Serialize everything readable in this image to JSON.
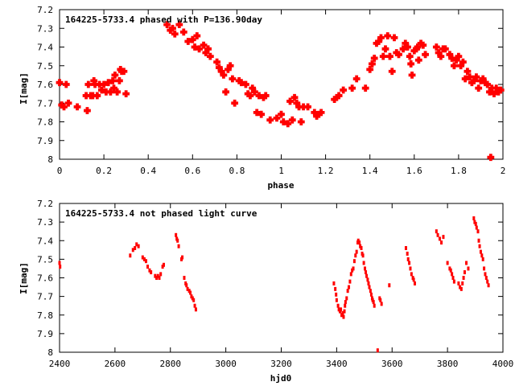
{
  "chart_data": [
    {
      "type": "scatter",
      "title": "164225-5733.4 phased with P=136.90day",
      "xlabel": "phase",
      "ylabel": "I[mag]",
      "xlim": [
        0,
        2
      ],
      "ylim": [
        7.2,
        8.0
      ],
      "y_inverted": true,
      "xticks": [
        "0",
        "0.2",
        "0.4",
        "0.6",
        "0.8",
        "1",
        "1.2",
        "1.4",
        "1.6",
        "1.8",
        "2"
      ],
      "yticks": [
        "7.2",
        "7.3",
        "7.4",
        "7.5",
        "7.6",
        "7.7",
        "7.8",
        "7.9",
        "8"
      ],
      "grid": false,
      "marker": "cross",
      "color": "#ff0000",
      "points": [
        [
          0.0,
          7.59
        ],
        [
          0.01,
          7.71
        ],
        [
          0.02,
          7.72
        ],
        [
          0.03,
          7.6
        ],
        [
          0.04,
          7.7
        ],
        [
          0.08,
          7.72
        ],
        [
          0.12,
          7.66
        ],
        [
          0.125,
          7.74
        ],
        [
          0.13,
          7.6
        ],
        [
          0.14,
          7.66
        ],
        [
          0.15,
          7.66
        ],
        [
          0.155,
          7.58
        ],
        [
          0.16,
          7.6
        ],
        [
          0.17,
          7.66
        ],
        [
          0.18,
          7.6
        ],
        [
          0.19,
          7.63
        ],
        [
          0.2,
          7.6
        ],
        [
          0.21,
          7.64
        ],
        [
          0.22,
          7.59
        ],
        [
          0.23,
          7.64
        ],
        [
          0.24,
          7.58
        ],
        [
          0.245,
          7.62
        ],
        [
          0.25,
          7.55
        ],
        [
          0.26,
          7.64
        ],
        [
          0.27,
          7.58
        ],
        [
          0.275,
          7.52
        ],
        [
          0.28,
          7.53
        ],
        [
          0.29,
          7.53
        ],
        [
          0.3,
          7.65
        ],
        [
          0.485,
          7.28
        ],
        [
          0.5,
          7.31
        ],
        [
          0.51,
          7.3
        ],
        [
          0.52,
          7.33
        ],
        [
          0.54,
          7.28
        ],
        [
          0.56,
          7.32
        ],
        [
          0.58,
          7.37
        ],
        [
          0.6,
          7.36
        ],
        [
          0.61,
          7.4
        ],
        [
          0.62,
          7.34
        ],
        [
          0.63,
          7.41
        ],
        [
          0.65,
          7.39
        ],
        [
          0.66,
          7.43
        ],
        [
          0.67,
          7.41
        ],
        [
          0.68,
          7.45
        ],
        [
          0.71,
          7.48
        ],
        [
          0.72,
          7.51
        ],
        [
          0.73,
          7.53
        ],
        [
          0.74,
          7.55
        ],
        [
          0.75,
          7.64
        ],
        [
          0.76,
          7.52
        ],
        [
          0.77,
          7.5
        ],
        [
          0.78,
          7.57
        ],
        [
          0.79,
          7.7
        ],
        [
          0.81,
          7.58
        ],
        [
          0.82,
          7.59
        ],
        [
          0.84,
          7.6
        ],
        [
          0.85,
          7.65
        ],
        [
          0.86,
          7.66
        ],
        [
          0.87,
          7.62
        ],
        [
          0.88,
          7.64
        ],
        [
          0.89,
          7.75
        ],
        [
          0.9,
          7.66
        ],
        [
          0.91,
          7.76
        ],
        [
          0.92,
          7.67
        ],
        [
          0.93,
          7.66
        ],
        [
          0.95,
          7.79
        ],
        [
          0.98,
          7.78
        ],
        [
          1.0,
          7.76
        ],
        [
          1.01,
          7.8
        ],
        [
          1.03,
          7.81
        ],
        [
          1.04,
          7.69
        ],
        [
          1.05,
          7.79
        ],
        [
          1.06,
          7.67
        ],
        [
          1.07,
          7.7
        ],
        [
          1.08,
          7.72
        ],
        [
          1.09,
          7.8
        ],
        [
          1.1,
          7.72
        ],
        [
          1.12,
          7.72
        ],
        [
          1.15,
          7.75
        ],
        [
          1.16,
          7.77
        ],
        [
          1.17,
          7.76
        ],
        [
          1.18,
          7.75
        ],
        [
          1.24,
          7.68
        ],
        [
          1.25,
          7.67
        ],
        [
          1.26,
          7.66
        ],
        [
          1.28,
          7.63
        ],
        [
          1.32,
          7.62
        ],
        [
          1.34,
          7.57
        ],
        [
          1.38,
          7.62
        ],
        [
          1.4,
          7.52
        ],
        [
          1.41,
          7.49
        ],
        [
          1.42,
          7.46
        ],
        [
          1.43,
          7.38
        ],
        [
          1.44,
          7.37
        ],
        [
          1.45,
          7.35
        ],
        [
          1.46,
          7.45
        ],
        [
          1.47,
          7.41
        ],
        [
          1.48,
          7.34
        ],
        [
          1.49,
          7.45
        ],
        [
          1.5,
          7.53
        ],
        [
          1.51,
          7.35
        ],
        [
          1.52,
          7.43
        ],
        [
          1.53,
          7.44
        ],
        [
          1.55,
          7.41
        ],
        [
          1.56,
          7.38
        ],
        [
          1.57,
          7.4
        ],
        [
          1.58,
          7.45
        ],
        [
          1.585,
          7.49
        ],
        [
          1.59,
          7.55
        ],
        [
          1.6,
          7.42
        ],
        [
          1.61,
          7.41
        ],
        [
          1.615,
          7.4
        ],
        [
          1.62,
          7.47
        ],
        [
          1.63,
          7.38
        ],
        [
          1.64,
          7.39
        ],
        [
          1.65,
          7.44
        ],
        [
          1.7,
          7.4
        ],
        [
          1.71,
          7.43
        ],
        [
          1.72,
          7.45
        ],
        [
          1.73,
          7.41
        ],
        [
          1.74,
          7.41
        ],
        [
          1.76,
          7.44
        ],
        [
          1.77,
          7.46
        ],
        [
          1.78,
          7.5
        ],
        [
          1.79,
          7.47
        ],
        [
          1.8,
          7.45
        ],
        [
          1.81,
          7.5
        ],
        [
          1.82,
          7.48
        ],
        [
          1.83,
          7.57
        ],
        [
          1.84,
          7.53
        ],
        [
          1.85,
          7.56
        ],
        [
          1.86,
          7.59
        ],
        [
          1.87,
          7.58
        ],
        [
          1.88,
          7.56
        ],
        [
          1.89,
          7.62
        ],
        [
          1.9,
          7.58
        ],
        [
          1.91,
          7.57
        ],
        [
          1.92,
          7.59
        ],
        [
          1.93,
          7.6
        ],
        [
          1.94,
          7.64
        ],
        [
          1.945,
          7.99
        ],
        [
          1.95,
          7.62
        ],
        [
          1.96,
          7.65
        ],
        [
          1.97,
          7.62
        ],
        [
          1.98,
          7.64
        ],
        [
          1.99,
          7.63
        ]
      ]
    },
    {
      "type": "scatter",
      "title": "164225-5733.4 not phased light curve",
      "xlabel": "hjd0",
      "ylabel": "I[mag]",
      "xlim": [
        2400,
        4000
      ],
      "ylim": [
        7.2,
        8.0
      ],
      "y_inverted": true,
      "xticks": [
        "2400",
        "2600",
        "2800",
        "3000",
        "3200",
        "3400",
        "3600",
        "3800",
        "4000"
      ],
      "yticks": [
        "7.2",
        "7.3",
        "7.4",
        "7.5",
        "7.6",
        "7.7",
        "7.8",
        "7.9",
        "8"
      ],
      "grid": false,
      "marker": "dot",
      "color": "#ff0000",
      "points": [
        [
          2400,
          7.52
        ],
        [
          2402,
          7.54
        ],
        [
          2655,
          7.48
        ],
        [
          2665,
          7.45
        ],
        [
          2672,
          7.44
        ],
        [
          2678,
          7.42
        ],
        [
          2685,
          7.43
        ],
        [
          2700,
          7.49
        ],
        [
          2706,
          7.5
        ],
        [
          2712,
          7.51
        ],
        [
          2718,
          7.54
        ],
        [
          2725,
          7.56
        ],
        [
          2730,
          7.57
        ],
        [
          2745,
          7.59
        ],
        [
          2750,
          7.6
        ],
        [
          2755,
          7.59
        ],
        [
          2760,
          7.6
        ],
        [
          2765,
          7.58
        ],
        [
          2772,
          7.54
        ],
        [
          2776,
          7.53
        ],
        [
          2820,
          7.37
        ],
        [
          2823,
          7.39
        ],
        [
          2826,
          7.4
        ],
        [
          2830,
          7.43
        ],
        [
          2840,
          7.5
        ],
        [
          2843,
          7.49
        ],
        [
          2850,
          7.6
        ],
        [
          2855,
          7.63
        ],
        [
          2858,
          7.64
        ],
        [
          2862,
          7.66
        ],
        [
          2868,
          7.67
        ],
        [
          2872,
          7.68
        ],
        [
          2876,
          7.7
        ],
        [
          2880,
          7.71
        ],
        [
          2884,
          7.72
        ],
        [
          2888,
          7.75
        ],
        [
          2892,
          7.77
        ],
        [
          3390,
          7.63
        ],
        [
          3395,
          7.66
        ],
        [
          3398,
          7.69
        ],
        [
          3400,
          7.72
        ],
        [
          3405,
          7.75
        ],
        [
          3408,
          7.77
        ],
        [
          3412,
          7.78
        ],
        [
          3415,
          7.77
        ],
        [
          3418,
          7.8
        ],
        [
          3422,
          7.79
        ],
        [
          3425,
          7.81
        ],
        [
          3428,
          7.78
        ],
        [
          3430,
          7.75
        ],
        [
          3432,
          7.73
        ],
        [
          3436,
          7.71
        ],
        [
          3440,
          7.67
        ],
        [
          3444,
          7.65
        ],
        [
          3448,
          7.62
        ],
        [
          3452,
          7.58
        ],
        [
          3456,
          7.56
        ],
        [
          3460,
          7.55
        ],
        [
          3464,
          7.51
        ],
        [
          3468,
          7.48
        ],
        [
          3472,
          7.46
        ],
        [
          3476,
          7.41
        ],
        [
          3478,
          7.4
        ],
        [
          3482,
          7.41
        ],
        [
          3485,
          7.43
        ],
        [
          3489,
          7.44
        ],
        [
          3492,
          7.47
        ],
        [
          3495,
          7.48
        ],
        [
          3498,
          7.52
        ],
        [
          3502,
          7.55
        ],
        [
          3505,
          7.57
        ],
        [
          3508,
          7.59
        ],
        [
          3512,
          7.61
        ],
        [
          3515,
          7.63
        ],
        [
          3518,
          7.65
        ],
        [
          3522,
          7.67
        ],
        [
          3525,
          7.69
        ],
        [
          3528,
          7.71
        ],
        [
          3530,
          7.72
        ],
        [
          3533,
          7.73
        ],
        [
          3536,
          7.75
        ],
        [
          3548,
          7.99
        ],
        [
          3555,
          7.71
        ],
        [
          3558,
          7.72
        ],
        [
          3562,
          7.74
        ],
        [
          3590,
          7.64
        ],
        [
          3650,
          7.44
        ],
        [
          3655,
          7.47
        ],
        [
          3658,
          7.5
        ],
        [
          3662,
          7.52
        ],
        [
          3666,
          7.55
        ],
        [
          3670,
          7.58
        ],
        [
          3675,
          7.6
        ],
        [
          3678,
          7.61
        ],
        [
          3682,
          7.63
        ],
        [
          3760,
          7.35
        ],
        [
          3765,
          7.37
        ],
        [
          3772,
          7.39
        ],
        [
          3778,
          7.41
        ],
        [
          3785,
          7.38
        ],
        [
          3800,
          7.52
        ],
        [
          3808,
          7.55
        ],
        [
          3812,
          7.56
        ],
        [
          3816,
          7.58
        ],
        [
          3820,
          7.6
        ],
        [
          3824,
          7.62
        ],
        [
          3840,
          7.63
        ],
        [
          3845,
          7.65
        ],
        [
          3850,
          7.66
        ],
        [
          3854,
          7.63
        ],
        [
          3858,
          7.6
        ],
        [
          3862,
          7.57
        ],
        [
          3868,
          7.52
        ],
        [
          3875,
          7.55
        ],
        [
          3895,
          7.28
        ],
        [
          3898,
          7.3
        ],
        [
          3902,
          7.31
        ],
        [
          3905,
          7.33
        ],
        [
          3910,
          7.35
        ],
        [
          3913,
          7.4
        ],
        [
          3916,
          7.43
        ],
        [
          3920,
          7.46
        ],
        [
          3924,
          7.48
        ],
        [
          3928,
          7.5
        ],
        [
          3932,
          7.55
        ],
        [
          3936,
          7.58
        ],
        [
          3940,
          7.6
        ],
        [
          3944,
          7.62
        ],
        [
          3948,
          7.64
        ]
      ]
    }
  ]
}
